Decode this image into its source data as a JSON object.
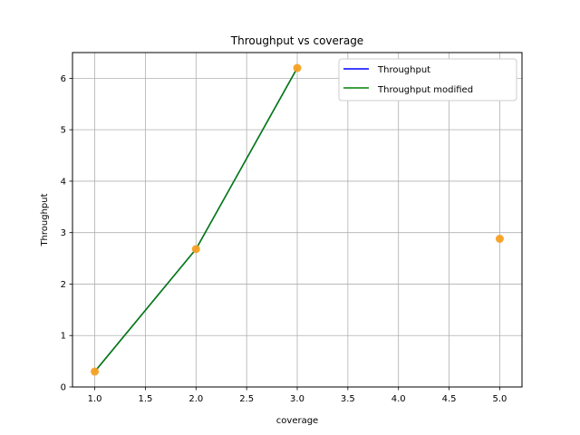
{
  "chart_data": {
    "type": "line",
    "title": "Throughput vs coverage",
    "xlabel": "coverage",
    "ylabel": "Throughput",
    "xlim": [
      0.78,
      5.22
    ],
    "ylim": [
      0,
      6.5
    ],
    "xticks": [
      1.0,
      1.5,
      2.0,
      2.5,
      3.0,
      3.5,
      4.0,
      4.5,
      5.0
    ],
    "xtick_labels": [
      "1.0",
      "1.5",
      "2.0",
      "2.5",
      "3.0",
      "3.5",
      "4.0",
      "4.5",
      "5.0"
    ],
    "yticks": [
      0,
      1,
      2,
      3,
      4,
      5,
      6
    ],
    "ytick_labels": [
      "0",
      "1",
      "2",
      "3",
      "4",
      "5",
      "6"
    ],
    "grid": true,
    "legend_position": "top-right",
    "series": [
      {
        "name": "Throughput",
        "kind": "line",
        "color": "#0000ff",
        "x": [
          1,
          2,
          3
        ],
        "y": [
          0.3,
          2.68,
          6.2
        ]
      },
      {
        "name": "Throughput modified",
        "kind": "line",
        "color": "#008000",
        "x": [
          1,
          2,
          3
        ],
        "y": [
          0.3,
          2.68,
          6.2
        ]
      },
      {
        "kind": "scatter",
        "color": "#f5a023",
        "x": [
          1,
          2,
          3,
          5
        ],
        "y": [
          0.3,
          2.68,
          6.2,
          2.88
        ]
      }
    ]
  }
}
